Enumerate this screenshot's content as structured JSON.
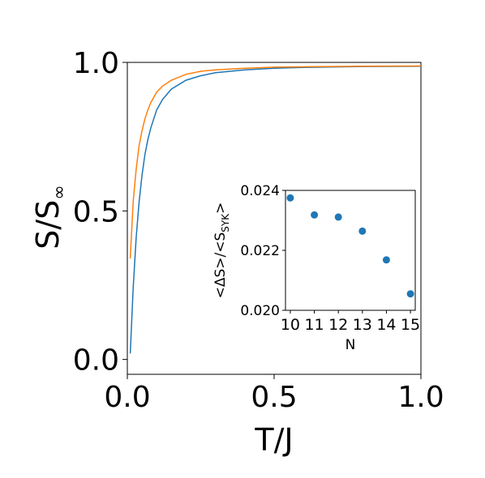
{
  "chart_data": [
    {
      "type": "line",
      "title": "",
      "xlabel": "T/J",
      "ylabel": "S/S",
      "ylabel_sub": "∞",
      "xlim": [
        0.0,
        1.0
      ],
      "ylim": [
        -0.05,
        1.0
      ],
      "xticks": [
        0.0,
        0.5,
        1.0
      ],
      "xtick_labels": [
        "0.0",
        "0.5",
        "1.0"
      ],
      "yticks": [
        0.0,
        0.5,
        1.0
      ],
      "ytick_labels": [
        "0.0",
        "0.5",
        "1.0"
      ],
      "grid": false,
      "series": [
        {
          "color": "#1f77b4",
          "x": [
            0.01,
            0.02,
            0.03,
            0.04,
            0.05,
            0.06,
            0.07,
            0.08,
            0.1,
            0.12,
            0.15,
            0.2,
            0.25,
            0.3,
            0.4,
            0.5,
            0.6,
            0.8,
            1.0
          ],
          "y": [
            0.02,
            0.24,
            0.41,
            0.53,
            0.62,
            0.69,
            0.74,
            0.78,
            0.84,
            0.875,
            0.91,
            0.94,
            0.955,
            0.965,
            0.975,
            0.98,
            0.983,
            0.986,
            0.987
          ]
        },
        {
          "color": "#ff7f0e",
          "x": [
            0.01,
            0.02,
            0.03,
            0.04,
            0.05,
            0.06,
            0.07,
            0.08,
            0.1,
            0.12,
            0.15,
            0.2,
            0.25,
            0.3,
            0.4,
            0.5,
            0.6,
            0.8,
            1.0
          ],
          "y": [
            0.34,
            0.53,
            0.64,
            0.72,
            0.77,
            0.81,
            0.84,
            0.865,
            0.9,
            0.92,
            0.94,
            0.96,
            0.97,
            0.975,
            0.98,
            0.984,
            0.985,
            0.987,
            0.988
          ]
        }
      ]
    },
    {
      "type": "scatter",
      "title": "",
      "xlabel": "N",
      "ylabel_parts": [
        "<ΔS>/<S",
        "SYK",
        ">"
      ],
      "xlim": [
        9.8,
        15.2
      ],
      "ylim": [
        0.02,
        0.024
      ],
      "xticks": [
        10,
        11,
        12,
        13,
        14,
        15
      ],
      "xtick_labels": [
        "10",
        "11",
        "12",
        "13",
        "14",
        "15"
      ],
      "yticks": [
        0.02,
        0.022,
        0.024
      ],
      "ytick_labels": [
        "0.020",
        "0.022",
        "0.024"
      ],
      "grid": false,
      "series": [
        {
          "color": "#1f77b4",
          "x": [
            10,
            11,
            12,
            13,
            14,
            15
          ],
          "y": [
            0.02375,
            0.02318,
            0.02311,
            0.02264,
            0.02168,
            0.02055
          ]
        }
      ]
    }
  ]
}
